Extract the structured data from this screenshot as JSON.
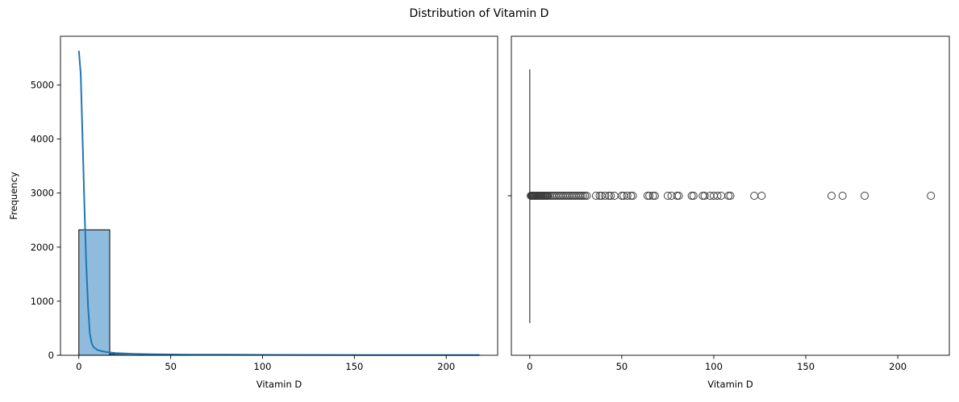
{
  "figure": {
    "title": "Distribution of Vitamin D"
  },
  "chart_data": [
    {
      "type": "bar",
      "subtype": "histogram-with-kde",
      "title": "",
      "xlabel": "Vitamin D",
      "ylabel": "Frequency",
      "xlim": [
        -10,
        228
      ],
      "ylim": [
        0,
        5900
      ],
      "xticks": [
        0,
        50,
        100,
        150,
        200
      ],
      "yticks": [
        0,
        1000,
        2000,
        3000,
        4000,
        5000
      ],
      "bar_color": "#8fbcdd",
      "bar_edge_color": "#000000",
      "line_color": "#1f77b4",
      "grid": false,
      "bins": [
        {
          "x0": 0,
          "x1": 16.8,
          "count": 2320
        },
        {
          "x0": 16.8,
          "x1": 33.6,
          "count": 25
        },
        {
          "x0": 33.6,
          "x1": 50.4,
          "count": 10
        },
        {
          "x0": 50.4,
          "x1": 67.2,
          "count": 8
        },
        {
          "x0": 67.2,
          "x1": 84.0,
          "count": 6
        },
        {
          "x0": 84.0,
          "x1": 100.8,
          "count": 5
        },
        {
          "x0": 100.8,
          "x1": 117.6,
          "count": 4
        },
        {
          "x0": 117.6,
          "x1": 134.4,
          "count": 2
        },
        {
          "x0": 134.4,
          "x1": 151.2,
          "count": 0
        },
        {
          "x0": 151.2,
          "x1": 168.0,
          "count": 1
        },
        {
          "x0": 168.0,
          "x1": 184.8,
          "count": 2
        },
        {
          "x0": 184.8,
          "x1": 201.6,
          "count": 0
        },
        {
          "x0": 201.6,
          "x1": 218.4,
          "count": 1
        }
      ],
      "kde": {
        "x": [
          0,
          1,
          2,
          3,
          4,
          5,
          6,
          7,
          8,
          10,
          12,
          15,
          20,
          30,
          40,
          60,
          80,
          100,
          130,
          160,
          190,
          218
        ],
        "y": [
          5630,
          5200,
          4050,
          2800,
          1700,
          900,
          400,
          220,
          150,
          100,
          80,
          60,
          40,
          25,
          18,
          12,
          10,
          8,
          6,
          5,
          4,
          3
        ]
      }
    },
    {
      "type": "box",
      "title": "",
      "xlabel": "Vitamin D",
      "ylabel": "",
      "xlim": [
        -10,
        228
      ],
      "xticks": [
        0,
        50,
        100,
        150,
        200
      ],
      "box_color": "#3d3d3d",
      "grid": false,
      "whisker_low": 0,
      "whisker_high": 0.5,
      "median": 0,
      "q1": 0,
      "q3": 0,
      "outliers": [
        0.6,
        0.8,
        1,
        1.2,
        1.5,
        1.8,
        2,
        2.3,
        2.6,
        3,
        3.4,
        3.8,
        4.2,
        4.6,
        5,
        5.5,
        6,
        6.5,
        7,
        7.5,
        8,
        8.5,
        9,
        9.5,
        10,
        11,
        12,
        13,
        14,
        15,
        16,
        17,
        18,
        19,
        20,
        21,
        22,
        23,
        24,
        25,
        26,
        27,
        28,
        29,
        30,
        31,
        36,
        38,
        39,
        41,
        43,
        44,
        46,
        50,
        51,
        53,
        55,
        56,
        64,
        65,
        67,
        68,
        75,
        77,
        80,
        81,
        88,
        89,
        94,
        95,
        98,
        100,
        102,
        104,
        108,
        109,
        122,
        126,
        164,
        170,
        182,
        218
      ]
    }
  ]
}
